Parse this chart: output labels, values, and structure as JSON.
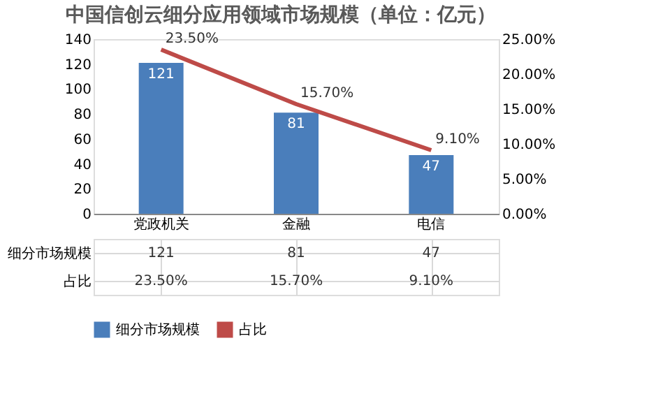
{
  "chart_data": {
    "type": "bar",
    "title": "中国信创云细分应用领域市场规模（单位：亿元）",
    "categories": [
      "党政机关",
      "金融",
      "电信"
    ],
    "series": [
      {
        "name": "细分市场规模",
        "color": "#4a7ebb",
        "values": [
          121,
          81,
          47
        ],
        "value_labels": [
          "121",
          "81",
          "47"
        ]
      },
      {
        "name": "占比",
        "type": "line",
        "axis": "y2",
        "color": "#be4b48",
        "values": [
          23.5,
          15.7,
          9.1
        ],
        "value_labels": [
          "23.50%",
          "15.70%",
          "9.10%"
        ]
      }
    ],
    "ylim": [
      0,
      140
    ],
    "yticks": [
      0,
      20,
      40,
      60,
      80,
      100,
      120,
      140
    ],
    "y2lim": [
      0,
      25
    ],
    "y2ticks": [
      {
        "value": 0,
        "label": "0.00%"
      },
      {
        "value": 5,
        "label": "5.00%"
      },
      {
        "value": 10,
        "label": "10.00%"
      },
      {
        "value": 15,
        "label": "15.00%"
      },
      {
        "value": 20,
        "label": "20.00%"
      },
      {
        "value": 25,
        "label": "25.00%"
      }
    ],
    "grid": false,
    "legend": "bottom",
    "marker": "none",
    "line_style": "solid"
  }
}
